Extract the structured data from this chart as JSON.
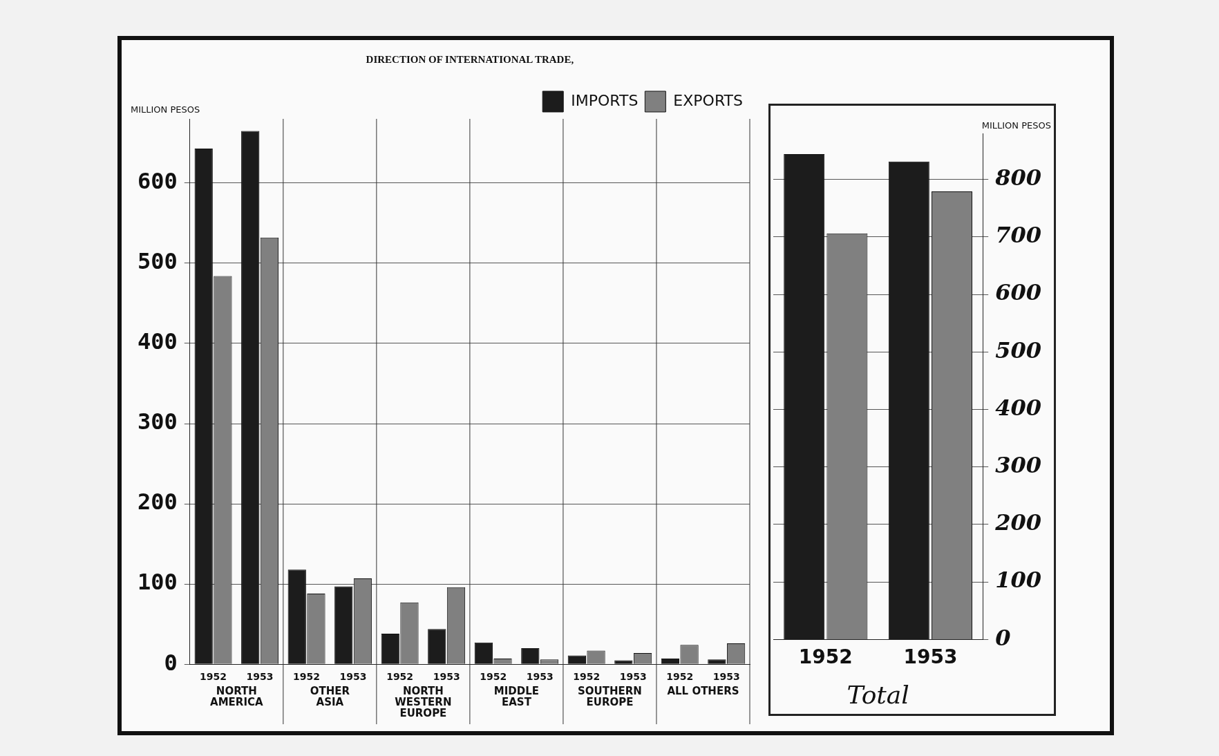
{
  "chart_data": [
    {
      "type": "bar",
      "title": "DIRECTION OF INTERNATIONAL TRADE,",
      "ylabel": "MILLION PESOS",
      "categories": [
        "1952",
        "1953",
        "1952",
        "1953",
        "1952",
        "1953",
        "1952",
        "1953",
        "1952",
        "1953",
        "1952",
        "1953"
      ],
      "series": [
        {
          "name": "IMPORTS",
          "color": "#1c1c1c",
          "values": [
            643,
            665,
            118,
            97,
            38,
            44,
            27,
            20,
            11,
            5,
            7,
            6
          ]
        },
        {
          "name": "EXPORTS",
          "color": "#808080",
          "values": [
            484,
            532,
            88,
            107,
            77,
            96,
            7,
            6,
            17,
            14,
            24,
            26
          ]
        }
      ],
      "annotations": [
        "NORTH\nAMERICA",
        "OTHER\nASIA",
        "NORTH\nWESTERN\nEUROPE",
        "MIDDLE\nEAST",
        "SOUTHERN\nEUROPE",
        "ALL OTHERS"
      ],
      "ylim": [
        0,
        680
      ],
      "yticks": [
        0,
        100,
        200,
        300,
        400,
        500,
        600
      ],
      "grid": true,
      "legend": "top right"
    },
    {
      "type": "bar",
      "xlabel": "Total",
      "ylabel": "MILLION PESOS",
      "categories": [
        "1952",
        "1953"
      ],
      "series": [
        {
          "color": "#1c1c1c",
          "values": [
            844,
            831
          ]
        },
        {
          "color": "#808080",
          "values": [
            706,
            779
          ]
        }
      ],
      "ylim": [
        0,
        880
      ],
      "yticks": [
        0,
        100,
        200,
        300,
        400,
        500,
        600,
        700,
        800
      ],
      "grid": "y"
    }
  ]
}
